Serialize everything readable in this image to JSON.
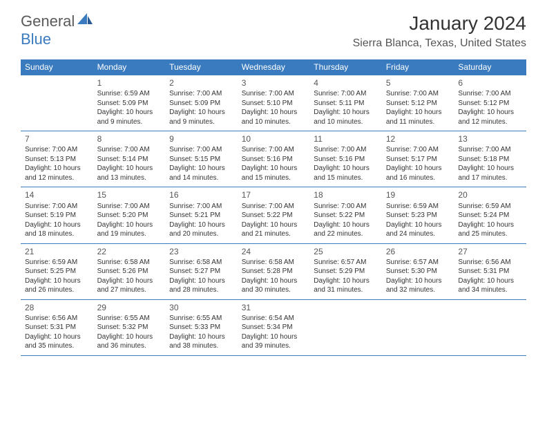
{
  "logo": {
    "part1": "General",
    "part2": "Blue"
  },
  "title": "January 2024",
  "location": "Sierra Blanca, Texas, United States",
  "colors": {
    "brand_blue": "#3a7bbf",
    "text_gray": "#333333",
    "header_text": "#ffffff",
    "bg": "#ffffff"
  },
  "day_headers": [
    "Sunday",
    "Monday",
    "Tuesday",
    "Wednesday",
    "Thursday",
    "Friday",
    "Saturday"
  ],
  "weeks": [
    [
      {
        "n": "",
        "sr": "",
        "ss": "",
        "dl": ""
      },
      {
        "n": "1",
        "sr": "Sunrise: 6:59 AM",
        "ss": "Sunset: 5:09 PM",
        "dl": "Daylight: 10 hours and 9 minutes."
      },
      {
        "n": "2",
        "sr": "Sunrise: 7:00 AM",
        "ss": "Sunset: 5:09 PM",
        "dl": "Daylight: 10 hours and 9 minutes."
      },
      {
        "n": "3",
        "sr": "Sunrise: 7:00 AM",
        "ss": "Sunset: 5:10 PM",
        "dl": "Daylight: 10 hours and 10 minutes."
      },
      {
        "n": "4",
        "sr": "Sunrise: 7:00 AM",
        "ss": "Sunset: 5:11 PM",
        "dl": "Daylight: 10 hours and 10 minutes."
      },
      {
        "n": "5",
        "sr": "Sunrise: 7:00 AM",
        "ss": "Sunset: 5:12 PM",
        "dl": "Daylight: 10 hours and 11 minutes."
      },
      {
        "n": "6",
        "sr": "Sunrise: 7:00 AM",
        "ss": "Sunset: 5:12 PM",
        "dl": "Daylight: 10 hours and 12 minutes."
      }
    ],
    [
      {
        "n": "7",
        "sr": "Sunrise: 7:00 AM",
        "ss": "Sunset: 5:13 PM",
        "dl": "Daylight: 10 hours and 12 minutes."
      },
      {
        "n": "8",
        "sr": "Sunrise: 7:00 AM",
        "ss": "Sunset: 5:14 PM",
        "dl": "Daylight: 10 hours and 13 minutes."
      },
      {
        "n": "9",
        "sr": "Sunrise: 7:00 AM",
        "ss": "Sunset: 5:15 PM",
        "dl": "Daylight: 10 hours and 14 minutes."
      },
      {
        "n": "10",
        "sr": "Sunrise: 7:00 AM",
        "ss": "Sunset: 5:16 PM",
        "dl": "Daylight: 10 hours and 15 minutes."
      },
      {
        "n": "11",
        "sr": "Sunrise: 7:00 AM",
        "ss": "Sunset: 5:16 PM",
        "dl": "Daylight: 10 hours and 15 minutes."
      },
      {
        "n": "12",
        "sr": "Sunrise: 7:00 AM",
        "ss": "Sunset: 5:17 PM",
        "dl": "Daylight: 10 hours and 16 minutes."
      },
      {
        "n": "13",
        "sr": "Sunrise: 7:00 AM",
        "ss": "Sunset: 5:18 PM",
        "dl": "Daylight: 10 hours and 17 minutes."
      }
    ],
    [
      {
        "n": "14",
        "sr": "Sunrise: 7:00 AM",
        "ss": "Sunset: 5:19 PM",
        "dl": "Daylight: 10 hours and 18 minutes."
      },
      {
        "n": "15",
        "sr": "Sunrise: 7:00 AM",
        "ss": "Sunset: 5:20 PM",
        "dl": "Daylight: 10 hours and 19 minutes."
      },
      {
        "n": "16",
        "sr": "Sunrise: 7:00 AM",
        "ss": "Sunset: 5:21 PM",
        "dl": "Daylight: 10 hours and 20 minutes."
      },
      {
        "n": "17",
        "sr": "Sunrise: 7:00 AM",
        "ss": "Sunset: 5:22 PM",
        "dl": "Daylight: 10 hours and 21 minutes."
      },
      {
        "n": "18",
        "sr": "Sunrise: 7:00 AM",
        "ss": "Sunset: 5:22 PM",
        "dl": "Daylight: 10 hours and 22 minutes."
      },
      {
        "n": "19",
        "sr": "Sunrise: 6:59 AM",
        "ss": "Sunset: 5:23 PM",
        "dl": "Daylight: 10 hours and 24 minutes."
      },
      {
        "n": "20",
        "sr": "Sunrise: 6:59 AM",
        "ss": "Sunset: 5:24 PM",
        "dl": "Daylight: 10 hours and 25 minutes."
      }
    ],
    [
      {
        "n": "21",
        "sr": "Sunrise: 6:59 AM",
        "ss": "Sunset: 5:25 PM",
        "dl": "Daylight: 10 hours and 26 minutes."
      },
      {
        "n": "22",
        "sr": "Sunrise: 6:58 AM",
        "ss": "Sunset: 5:26 PM",
        "dl": "Daylight: 10 hours and 27 minutes."
      },
      {
        "n": "23",
        "sr": "Sunrise: 6:58 AM",
        "ss": "Sunset: 5:27 PM",
        "dl": "Daylight: 10 hours and 28 minutes."
      },
      {
        "n": "24",
        "sr": "Sunrise: 6:58 AM",
        "ss": "Sunset: 5:28 PM",
        "dl": "Daylight: 10 hours and 30 minutes."
      },
      {
        "n": "25",
        "sr": "Sunrise: 6:57 AM",
        "ss": "Sunset: 5:29 PM",
        "dl": "Daylight: 10 hours and 31 minutes."
      },
      {
        "n": "26",
        "sr": "Sunrise: 6:57 AM",
        "ss": "Sunset: 5:30 PM",
        "dl": "Daylight: 10 hours and 32 minutes."
      },
      {
        "n": "27",
        "sr": "Sunrise: 6:56 AM",
        "ss": "Sunset: 5:31 PM",
        "dl": "Daylight: 10 hours and 34 minutes."
      }
    ],
    [
      {
        "n": "28",
        "sr": "Sunrise: 6:56 AM",
        "ss": "Sunset: 5:31 PM",
        "dl": "Daylight: 10 hours and 35 minutes."
      },
      {
        "n": "29",
        "sr": "Sunrise: 6:55 AM",
        "ss": "Sunset: 5:32 PM",
        "dl": "Daylight: 10 hours and 36 minutes."
      },
      {
        "n": "30",
        "sr": "Sunrise: 6:55 AM",
        "ss": "Sunset: 5:33 PM",
        "dl": "Daylight: 10 hours and 38 minutes."
      },
      {
        "n": "31",
        "sr": "Sunrise: 6:54 AM",
        "ss": "Sunset: 5:34 PM",
        "dl": "Daylight: 10 hours and 39 minutes."
      },
      {
        "n": "",
        "sr": "",
        "ss": "",
        "dl": ""
      },
      {
        "n": "",
        "sr": "",
        "ss": "",
        "dl": ""
      },
      {
        "n": "",
        "sr": "",
        "ss": "",
        "dl": ""
      }
    ]
  ]
}
